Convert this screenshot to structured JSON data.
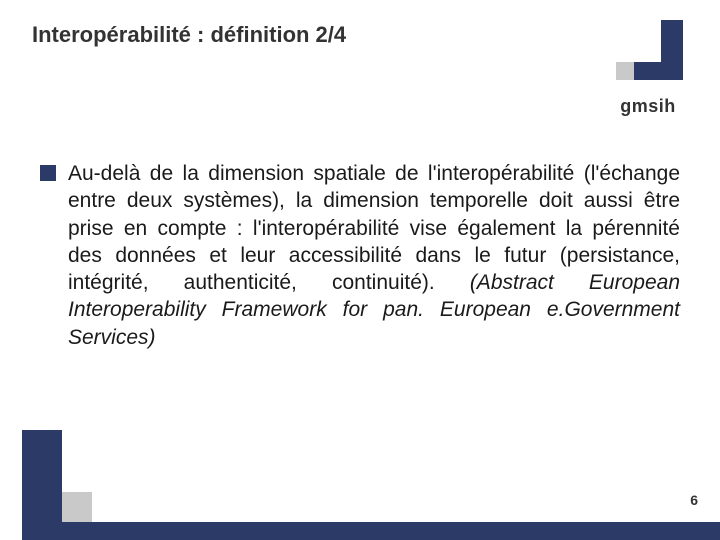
{
  "title": "Interopérabilité : définition 2/4",
  "logo": {
    "text": "gmsih",
    "colors": {
      "dark": "#2b3a67",
      "grey": "#c9c9c9"
    }
  },
  "bullet": {
    "main_text": "Au-delà de la dimension spatiale de l'interopérabilité (l'échange entre deux systèmes), la dimension temporelle doit aussi être prise en compte : l'interopérabilité vise également la pérennité des données et leur accessibilité dans le futur (persistance, intégrité, authenticité, continuité). ",
    "italic_text": "(Abstract European Interoperability Framework for pan. European e.Government Services)",
    "bullet_color": "#2b3a67"
  },
  "footer": {
    "colors": {
      "dark": "#2b3a67",
      "grey": "#c9c9c9"
    }
  },
  "page_number": "6"
}
